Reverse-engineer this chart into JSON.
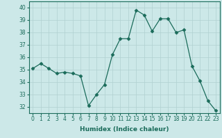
{
  "x": [
    0,
    1,
    2,
    3,
    4,
    5,
    6,
    7,
    8,
    9,
    10,
    11,
    12,
    13,
    14,
    15,
    16,
    17,
    18,
    19,
    20,
    21,
    22,
    23
  ],
  "y": [
    35.1,
    35.5,
    35.1,
    34.7,
    34.8,
    34.7,
    34.5,
    32.1,
    33.0,
    33.8,
    36.2,
    37.5,
    37.5,
    39.8,
    39.4,
    38.1,
    39.1,
    39.1,
    38.0,
    38.2,
    35.3,
    34.1,
    32.5,
    31.7
  ],
  "line_color": "#1a6b5a",
  "marker": "D",
  "marker_size": 2.5,
  "bg_color": "#cce8e8",
  "grid_color": "#b0d0d0",
  "xlabel": "Humidex (Indice chaleur)",
  "xlim": [
    -0.5,
    23.5
  ],
  "ylim": [
    31.5,
    40.5
  ],
  "yticks": [
    32,
    33,
    34,
    35,
    36,
    37,
    38,
    39,
    40
  ],
  "xticks": [
    0,
    1,
    2,
    3,
    4,
    5,
    6,
    7,
    8,
    9,
    10,
    11,
    12,
    13,
    14,
    15,
    16,
    17,
    18,
    19,
    20,
    21,
    22,
    23
  ],
  "xlabel_fontsize": 6.5,
  "tick_fontsize": 5.5
}
